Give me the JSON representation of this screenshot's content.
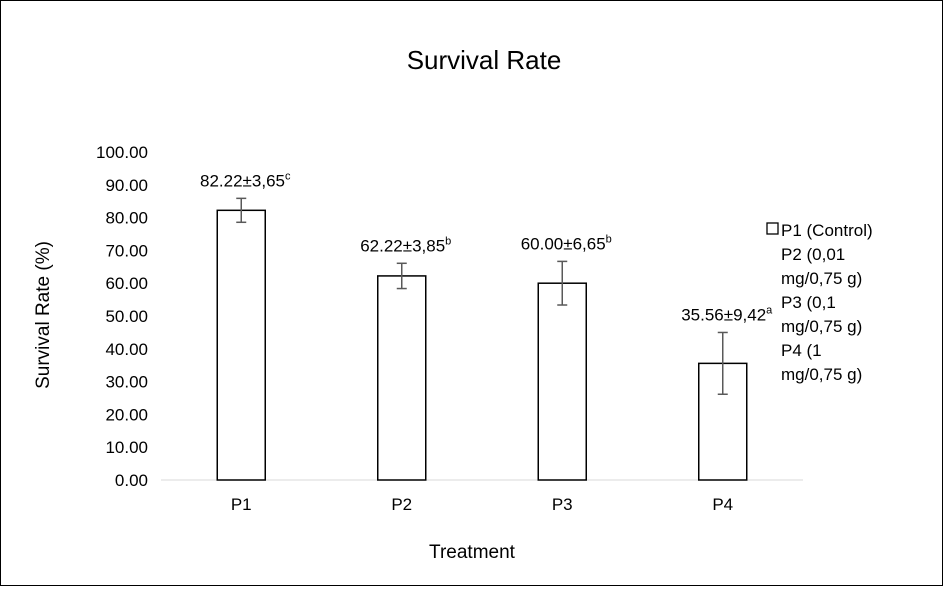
{
  "chart_data": {
    "type": "bar",
    "title": "Survival Rate",
    "xlabel": "Treatment",
    "ylabel": "Survival Rate (%)",
    "categories": [
      "P1",
      "P2",
      "P3",
      "P4"
    ],
    "values": [
      82.22,
      62.22,
      60.0,
      35.56
    ],
    "errors": [
      3.65,
      3.85,
      6.65,
      9.42
    ],
    "data_labels": [
      {
        "text": "82.22±3,65",
        "sup": "c"
      },
      {
        "text": "62.22±3,85",
        "sup": "b"
      },
      {
        "text": "60.00±6,65",
        "sup": "b"
      },
      {
        "text": "35.56±9,42",
        "sup": "a"
      }
    ],
    "ylim": [
      0,
      100
    ],
    "yticks": [
      "0.00",
      "10.00",
      "20.00",
      "30.00",
      "40.00",
      "50.00",
      "60.00",
      "70.00",
      "80.00",
      "90.00",
      "100.00"
    ],
    "grid": false,
    "legend_position": "right",
    "legend": [
      {
        "lines": [
          "P1 (Control)"
        ],
        "swatch": true
      },
      {
        "lines": [
          "P2 (0,01",
          "mg/0,75 g)"
        ],
        "swatch": false
      },
      {
        "lines": [
          "P3 (0,1",
          "mg/0,75 g)"
        ],
        "swatch": false
      },
      {
        "lines": [
          "P4 (1",
          "mg/0,75 g)"
        ],
        "swatch": false
      }
    ],
    "colors": {
      "bar_fill": "#ffffff",
      "bar_stroke": "#000000",
      "error_bar": "#595959",
      "axis": "#d9d9d9"
    }
  }
}
